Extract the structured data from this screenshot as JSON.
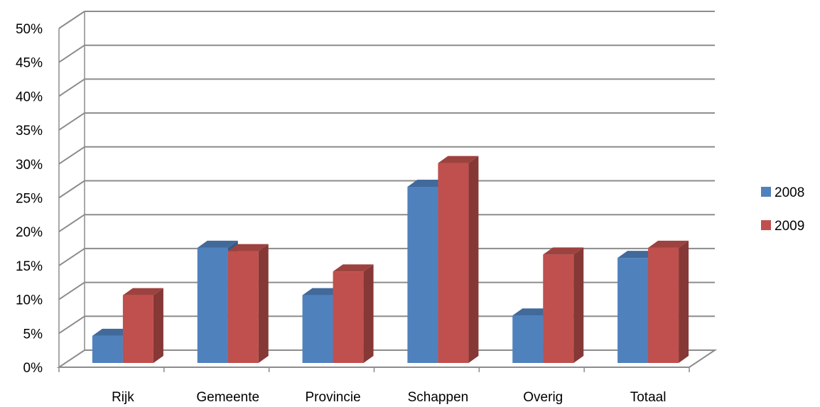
{
  "chart_data": {
    "type": "bar",
    "categories": [
      "Rijk",
      "Gemeente",
      "Provincie",
      "Schappen",
      "Overig",
      "Totaal"
    ],
    "series": [
      {
        "name": "2008",
        "values": [
          4,
          17,
          10,
          26,
          7,
          15.5
        ],
        "color": "#4F81BD"
      },
      {
        "name": "2009",
        "values": [
          10,
          16.5,
          13.5,
          29.5,
          16,
          17
        ],
        "color": "#C0504D"
      }
    ],
    "y_tick_labels": [
      "0%",
      "5%",
      "10%",
      "15%",
      "20%",
      "25%",
      "30%",
      "35%",
      "40%",
      "45%",
      "50%"
    ],
    "ylim": [
      0,
      50
    ],
    "grid": true,
    "legend_position": "right",
    "three_d": true
  }
}
